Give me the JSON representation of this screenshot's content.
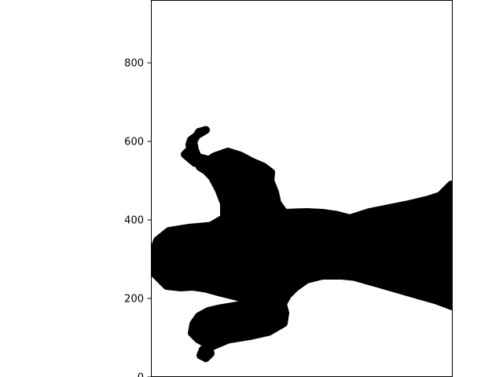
{
  "chart_data": {
    "type": "scatter",
    "title": "",
    "xlabel": "",
    "ylabel": "",
    "ylim": [
      0,
      960
    ],
    "yticks": [
      0,
      200,
      400,
      600,
      800
    ],
    "ytick_labels": [
      "0",
      "200",
      "400",
      "600",
      "800"
    ],
    "grid": false,
    "marker_color": "#000000",
    "description_of_shape": "",
    "silhouette_outline": [
      [
        262,
        629
      ],
      [
        252,
        617
      ],
      [
        243,
        604
      ],
      [
        241,
        592
      ],
      [
        242,
        580
      ],
      [
        235,
        567
      ],
      [
        248,
        545
      ],
      [
        262,
        548
      ],
      [
        273,
        562
      ],
      [
        290,
        574
      ],
      [
        306,
        564
      ],
      [
        321,
        548
      ],
      [
        335,
        536
      ],
      [
        345,
        521
      ],
      [
        344,
        500
      ],
      [
        350,
        470
      ],
      [
        353,
        443
      ],
      [
        362,
        418
      ],
      [
        390,
        420
      ],
      [
        410,
        418
      ],
      [
        428,
        413
      ],
      [
        445,
        404
      ],
      [
        470,
        420
      ],
      [
        520,
        440
      ],
      [
        545,
        452
      ],
      [
        560,
        462
      ],
      [
        574,
        490
      ],
      [
        575,
        420
      ],
      [
        575,
        360
      ],
      [
        575,
        300
      ],
      [
        575,
        240
      ],
      [
        575,
        180
      ],
      [
        555,
        195
      ],
      [
        520,
        215
      ],
      [
        480,
        238
      ],
      [
        450,
        255
      ],
      [
        435,
        258
      ],
      [
        410,
        258
      ],
      [
        390,
        248
      ],
      [
        376,
        228
      ],
      [
        366,
        208
      ],
      [
        360,
        186
      ],
      [
        363,
        163
      ],
      [
        361,
        137
      ],
      [
        342,
        115
      ],
      [
        318,
        104
      ],
      [
        290,
        95
      ],
      [
        270,
        78
      ],
      [
        258,
        70
      ],
      [
        255,
        55
      ],
      [
        262,
        48
      ],
      [
        268,
        60
      ],
      [
        265,
        82
      ],
      [
        252,
        96
      ],
      [
        244,
        112
      ],
      [
        246,
        135
      ],
      [
        253,
        155
      ],
      [
        265,
        168
      ],
      [
        280,
        175
      ],
      [
        295,
        180
      ],
      [
        312,
        186
      ],
      [
        320,
        195
      ],
      [
        300,
        205
      ],
      [
        280,
        215
      ],
      [
        262,
        225
      ],
      [
        245,
        230
      ],
      [
        230,
        228
      ],
      [
        212,
        232
      ],
      [
        202,
        252
      ],
      [
        194,
        268
      ],
      [
        194,
        300
      ],
      [
        196,
        325
      ],
      [
        200,
        348
      ],
      [
        215,
        372
      ],
      [
        240,
        380
      ],
      [
        268,
        385
      ],
      [
        285,
        405
      ],
      [
        285,
        442
      ],
      [
        278,
        478
      ],
      [
        270,
        508
      ],
      [
        262,
        525
      ],
      [
        254,
        535
      ],
      [
        262,
        555
      ],
      [
        252,
        560
      ],
      [
        248,
        578
      ],
      [
        246,
        600
      ],
      [
        253,
        624
      ]
    ]
  }
}
